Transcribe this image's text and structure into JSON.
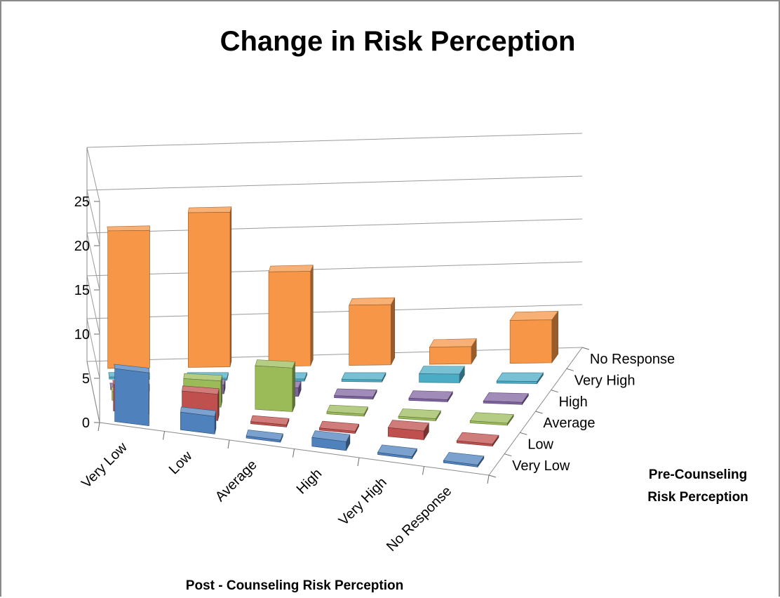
{
  "chart_data": {
    "type": "bar3d",
    "title": "Change in Risk Perception",
    "xlabel": "Post - Counseling Risk Perception",
    "zlabel_line1": "Pre-Counseling",
    "zlabel_line2": "Risk Perception",
    "ylabel": "",
    "x_categories": [
      "Very Low",
      "Low",
      "Average",
      "High",
      "Very High",
      "No Response"
    ],
    "y_ticks": [
      "0",
      "5",
      "10",
      "15",
      "20",
      "25"
    ],
    "ylim": [
      0,
      25
    ],
    "series": [
      {
        "name": "Very Low",
        "color": "#4f81bd",
        "values": [
          6,
          2,
          0,
          1,
          0,
          0
        ]
      },
      {
        "name": "Low",
        "color": "#c0504d",
        "values": [
          3,
          3,
          0,
          0,
          1,
          0
        ]
      },
      {
        "name": "Average",
        "color": "#9bbb59",
        "values": [
          1,
          3,
          5,
          0,
          0,
          0
        ]
      },
      {
        "name": "High",
        "color": "#8064a2",
        "values": [
          0,
          1,
          1,
          0,
          0,
          0
        ]
      },
      {
        "name": "Very High",
        "color": "#4bacc6",
        "values": [
          0,
          0,
          0,
          0,
          1,
          0
        ]
      },
      {
        "name": "No Response",
        "color": "#f79646",
        "values": [
          16,
          18,
          11,
          7,
          2,
          5
        ]
      }
    ],
    "grid": true,
    "legend": "none"
  }
}
